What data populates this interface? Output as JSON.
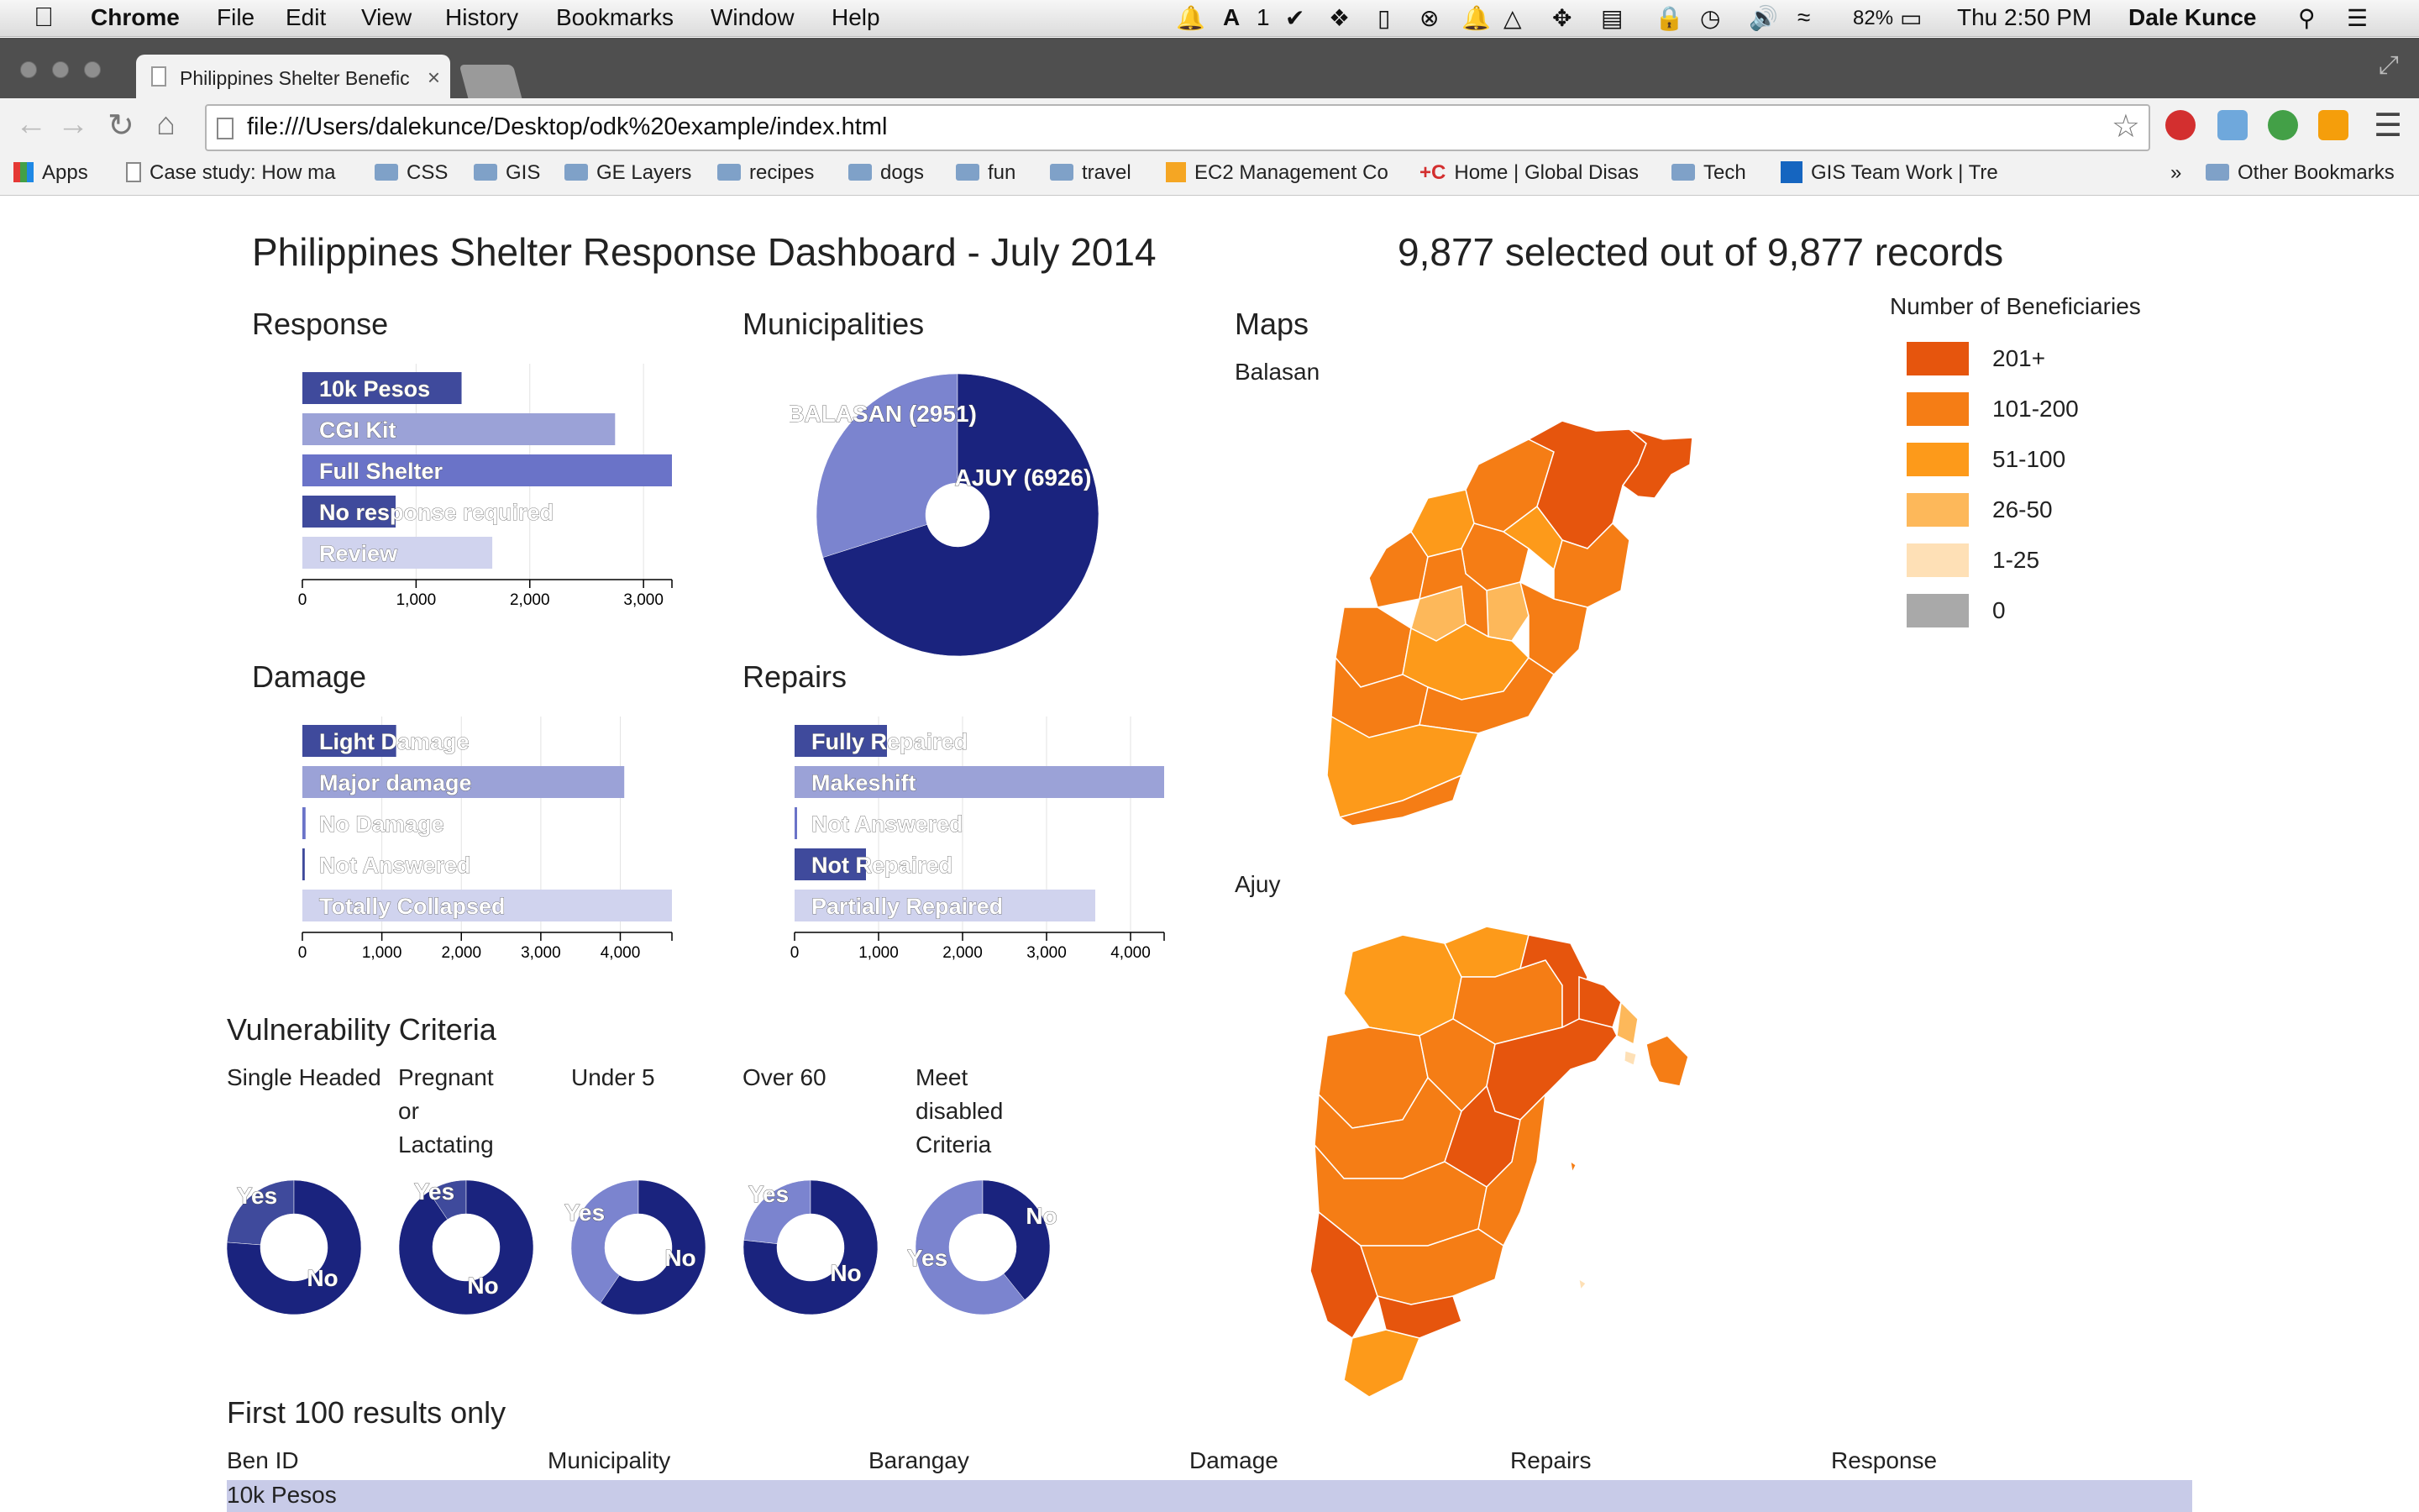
{
  "menubar": {
    "app": "Chrome",
    "menus": [
      "File",
      "Edit",
      "View",
      "History",
      "Bookmarks",
      "Window",
      "Help"
    ],
    "battery": "82%",
    "clock": "Thu 2:50 PM",
    "user": "Dale Kunce",
    "notif_count": "1"
  },
  "tab": {
    "title": "Philippines Shelter Benefic"
  },
  "address": {
    "url": "file:///Users/dalekunce/Desktop/odk%20example/index.html"
  },
  "bookmarks": {
    "apps": "Apps",
    "items": [
      "Case study: How ma",
      "CSS",
      "GIS",
      "GE Layers",
      "recipes",
      "dogs",
      "fun",
      "travel",
      "EC2 Management Co",
      "Home | Global Disas",
      "Tech",
      "GIS Team Work | Tre"
    ],
    "overflow": "»",
    "other": "Other Bookmarks"
  },
  "dashboard": {
    "title": "Philippines Shelter Response Dashboard - July 2014",
    "count": "9,877 selected out of 9,877 records"
  },
  "response": {
    "title": "Response",
    "ticks": [
      "0",
      "1,000",
      "2,000",
      "3,000"
    ]
  },
  "municipalities": {
    "title": "Municipalities"
  },
  "damage": {
    "title": "Damage",
    "ticks": [
      "0",
      "1,000",
      "2,000",
      "3,000",
      "4,000"
    ]
  },
  "repairs": {
    "title": "Repairs",
    "ticks": [
      "0",
      "1,000",
      "2,000",
      "3,000",
      "4,000"
    ]
  },
  "maps": {
    "title": "Maps",
    "balasan": "Balasan",
    "ajuy": "Ajuy"
  },
  "legend": {
    "title": "Number of Beneficiaries",
    "items": [
      {
        "label": "201+",
        "color": "#e6550d"
      },
      {
        "label": "101-200",
        "color": "#f57d15"
      },
      {
        "label": "51-100",
        "color": "#fd9a1a"
      },
      {
        "label": "26-50",
        "color": "#fdb85a"
      },
      {
        "label": "1-25",
        "color": "#fee0b6"
      },
      {
        "label": "0",
        "color": "#a9a9a9"
      }
    ]
  },
  "vulnerability": {
    "title": "Vulnerability Criteria",
    "items": [
      {
        "title": "Single Headed",
        "yes": "Yes",
        "no": "No"
      },
      {
        "title": "Pregnant or Lactating",
        "yes": "Yes",
        "no": "No"
      },
      {
        "title": "Under 5",
        "yes": "Yes",
        "no": "No"
      },
      {
        "title": "Over 60",
        "yes": "Yes",
        "no": "No"
      },
      {
        "title": "Meet disabled Criteria",
        "yes": "Yes",
        "no": "No"
      }
    ]
  },
  "table": {
    "title": "First 100 results only",
    "columns": [
      "Ben ID",
      "Municipality",
      "Barangay",
      "Damage",
      "Repairs",
      "Response"
    ],
    "group": "10k Pesos"
  },
  "chart_data": [
    {
      "type": "bar",
      "title": "Response",
      "categories": [
        "10k Pesos",
        "CGI Kit",
        "Full Shelter",
        "No response required",
        "Review"
      ],
      "values": [
        1400,
        2750,
        3250,
        820,
        1670
      ],
      "xlim": [
        0,
        3250
      ],
      "colors": [
        "#3f4a9c",
        "#9ba2d7",
        "#6a73c8",
        "#3f4a9c",
        "#d0d3ee"
      ]
    },
    {
      "type": "pie",
      "title": "Municipalities",
      "categories": [
        "BALASAN (2951)",
        "AJUY (6926)"
      ],
      "values": [
        2951,
        6926
      ],
      "colors": [
        "#7b84cf",
        "#1a237e"
      ]
    },
    {
      "type": "bar",
      "title": "Damage",
      "categories": [
        "Light Damage",
        "Major damage",
        "No Damage",
        "Not Answered",
        "Totally Collapsed"
      ],
      "values": [
        1180,
        4050,
        40,
        30,
        4650
      ],
      "xlim": [
        0,
        4650
      ],
      "colors": [
        "#3f4a9c",
        "#9ba2d7",
        "#6a73c8",
        "#3f4a9c",
        "#d0d3ee"
      ]
    },
    {
      "type": "bar",
      "title": "Repairs",
      "categories": [
        "Fully Repaired",
        "Makeshift",
        "Not Answered",
        "Not Repaired",
        "Partially Repaired"
      ],
      "values": [
        1100,
        4400,
        30,
        850,
        3580
      ],
      "xlim": [
        0,
        4400
      ],
      "colors": [
        "#3f4a9c",
        "#9ba2d7",
        "#6a73c8",
        "#3f4a9c",
        "#d0d3ee"
      ]
    },
    {
      "type": "pie",
      "title": "Single Headed",
      "categories": [
        "Yes",
        "No"
      ],
      "values": [
        2350,
        7527
      ],
      "colors": [
        "#3f4a9c",
        "#1a237e"
      ]
    },
    {
      "type": "pie",
      "title": "Pregnant or Lactating",
      "categories": [
        "Yes",
        "No"
      ],
      "values": [
        930,
        8947
      ],
      "colors": [
        "#3f4a9c",
        "#1a237e"
      ]
    },
    {
      "type": "pie",
      "title": "Under 5",
      "categories": [
        "Yes",
        "No"
      ],
      "values": [
        4000,
        5877
      ],
      "colors": [
        "#7b84cf",
        "#1a237e"
      ]
    },
    {
      "type": "pie",
      "title": "Over 60",
      "categories": [
        "Yes",
        "No"
      ],
      "values": [
        2300,
        7577
      ],
      "colors": [
        "#7b84cf",
        "#1a237e"
      ]
    },
    {
      "type": "pie",
      "title": "Meet disabled Criteria",
      "categories": [
        "Yes",
        "No"
      ],
      "values": [
        6000,
        3877
      ],
      "colors": [
        "#7b84cf",
        "#1a237e"
      ]
    }
  ]
}
